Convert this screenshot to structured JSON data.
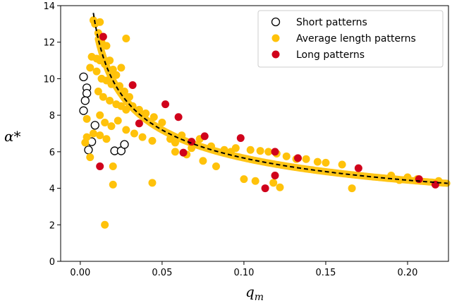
{
  "chart_data": {
    "type": "scatter",
    "title": "",
    "xlabel": "q_m",
    "ylabel": "α*",
    "xlim": [
      -0.012,
      0.225
    ],
    "ylim": [
      0,
      14
    ],
    "xticks": [
      0.0,
      0.05,
      0.1,
      0.15,
      0.2
    ],
    "xtick_labels": [
      "0.00",
      "0.05",
      "0.10",
      "0.15",
      "0.20"
    ],
    "yticks": [
      0,
      2,
      4,
      6,
      8,
      10,
      12,
      14
    ],
    "ytick_labels": [
      "0",
      "2",
      "4",
      "6",
      "8",
      "10",
      "12",
      "14"
    ],
    "legend_position": "top-right",
    "series": [
      {
        "name": "Short patterns",
        "marker": "hollow-circle",
        "color": "#000000",
        "points": [
          [
            0.002,
            10.1
          ],
          [
            0.004,
            9.5
          ],
          [
            0.004,
            9.2
          ],
          [
            0.003,
            8.8
          ],
          [
            0.002,
            8.25
          ],
          [
            0.009,
            7.45
          ],
          [
            0.007,
            6.55
          ],
          [
            0.005,
            6.1
          ],
          [
            0.021,
            6.05
          ],
          [
            0.025,
            6.05
          ],
          [
            0.027,
            6.4
          ]
        ]
      },
      {
        "name": "Average length patterns",
        "marker": "filled-circle",
        "color": "#FFC20A",
        "points": [
          [
            0.008,
            13.2
          ],
          [
            0.009,
            13.0
          ],
          [
            0.012,
            13.1
          ],
          [
            0.011,
            12.5
          ],
          [
            0.013,
            12.0
          ],
          [
            0.028,
            12.2
          ],
          [
            0.016,
            11.8
          ],
          [
            0.007,
            11.2
          ],
          [
            0.01,
            11.1
          ],
          [
            0.012,
            11.0
          ],
          [
            0.015,
            10.8
          ],
          [
            0.018,
            11.0
          ],
          [
            0.02,
            10.5
          ],
          [
            0.022,
            10.2
          ],
          [
            0.025,
            10.6
          ],
          [
            0.01,
            10.4
          ],
          [
            0.006,
            10.6
          ],
          [
            0.013,
            10.0
          ],
          [
            0.016,
            9.9
          ],
          [
            0.019,
            9.7
          ],
          [
            0.024,
            9.6
          ],
          [
            0.027,
            9.3
          ],
          [
            0.03,
            9.0
          ],
          [
            0.011,
            9.3
          ],
          [
            0.014,
            9.0
          ],
          [
            0.018,
            8.8
          ],
          [
            0.022,
            8.6
          ],
          [
            0.025,
            8.5
          ],
          [
            0.028,
            8.3
          ],
          [
            0.032,
            8.5
          ],
          [
            0.036,
            8.3
          ],
          [
            0.04,
            8.1
          ],
          [
            0.045,
            7.9
          ],
          [
            0.05,
            7.6
          ],
          [
            0.012,
            8.0
          ],
          [
            0.015,
            7.6
          ],
          [
            0.019,
            7.4
          ],
          [
            0.023,
            7.7
          ],
          [
            0.028,
            7.2
          ],
          [
            0.033,
            7.0
          ],
          [
            0.038,
            6.8
          ],
          [
            0.044,
            6.6
          ],
          [
            0.004,
            7.8
          ],
          [
            0.008,
            7.0
          ],
          [
            0.012,
            6.9
          ],
          [
            0.016,
            6.7
          ],
          [
            0.003,
            6.5
          ],
          [
            0.004,
            6.8
          ],
          [
            0.006,
            5.7
          ],
          [
            0.055,
            6.7
          ],
          [
            0.058,
            6.5
          ],
          [
            0.062,
            6.9
          ],
          [
            0.068,
            6.2
          ],
          [
            0.073,
            6.7
          ],
          [
            0.08,
            6.3
          ],
          [
            0.088,
            6.1
          ],
          [
            0.095,
            6.2
          ],
          [
            0.104,
            6.1
          ],
          [
            0.11,
            6.05
          ],
          [
            0.115,
            6.0
          ],
          [
            0.12,
            5.9
          ],
          [
            0.126,
            5.75
          ],
          [
            0.132,
            5.6
          ],
          [
            0.138,
            5.6
          ],
          [
            0.145,
            5.45
          ],
          [
            0.15,
            5.4
          ],
          [
            0.16,
            5.3
          ],
          [
            0.058,
            6.0
          ],
          [
            0.065,
            5.85
          ],
          [
            0.075,
            5.5
          ],
          [
            0.083,
            5.2
          ],
          [
            0.092,
            6.0
          ],
          [
            0.1,
            4.5
          ],
          [
            0.107,
            4.4
          ],
          [
            0.118,
            4.3
          ],
          [
            0.122,
            4.05
          ],
          [
            0.166,
            4.0
          ],
          [
            0.19,
            4.7
          ],
          [
            0.195,
            4.45
          ],
          [
            0.2,
            4.6
          ],
          [
            0.206,
            4.5
          ],
          [
            0.219,
            4.4
          ],
          [
            0.044,
            4.3
          ],
          [
            0.02,
            4.2
          ],
          [
            0.02,
            5.2
          ],
          [
            0.015,
            2.0
          ]
        ]
      },
      {
        "name": "Long patterns",
        "marker": "filled-circle",
        "color": "#D0021B",
        "points": [
          [
            0.014,
            12.3
          ],
          [
            0.032,
            9.65
          ],
          [
            0.052,
            8.6
          ],
          [
            0.06,
            7.9
          ],
          [
            0.036,
            7.55
          ],
          [
            0.076,
            6.85
          ],
          [
            0.098,
            6.75
          ],
          [
            0.068,
            6.55
          ],
          [
            0.063,
            5.95
          ],
          [
            0.119,
            6.0
          ],
          [
            0.133,
            5.65
          ],
          [
            0.012,
            5.2
          ],
          [
            0.119,
            4.7
          ],
          [
            0.113,
            4.0
          ],
          [
            0.17,
            5.1
          ],
          [
            0.207,
            4.5
          ],
          [
            0.217,
            4.2
          ]
        ]
      }
    ],
    "fit_curve": {
      "style": "dashed",
      "color": "#000000",
      "band_color": "#FFC20A",
      "x_start": 0.008,
      "x_end": 0.225
    }
  }
}
